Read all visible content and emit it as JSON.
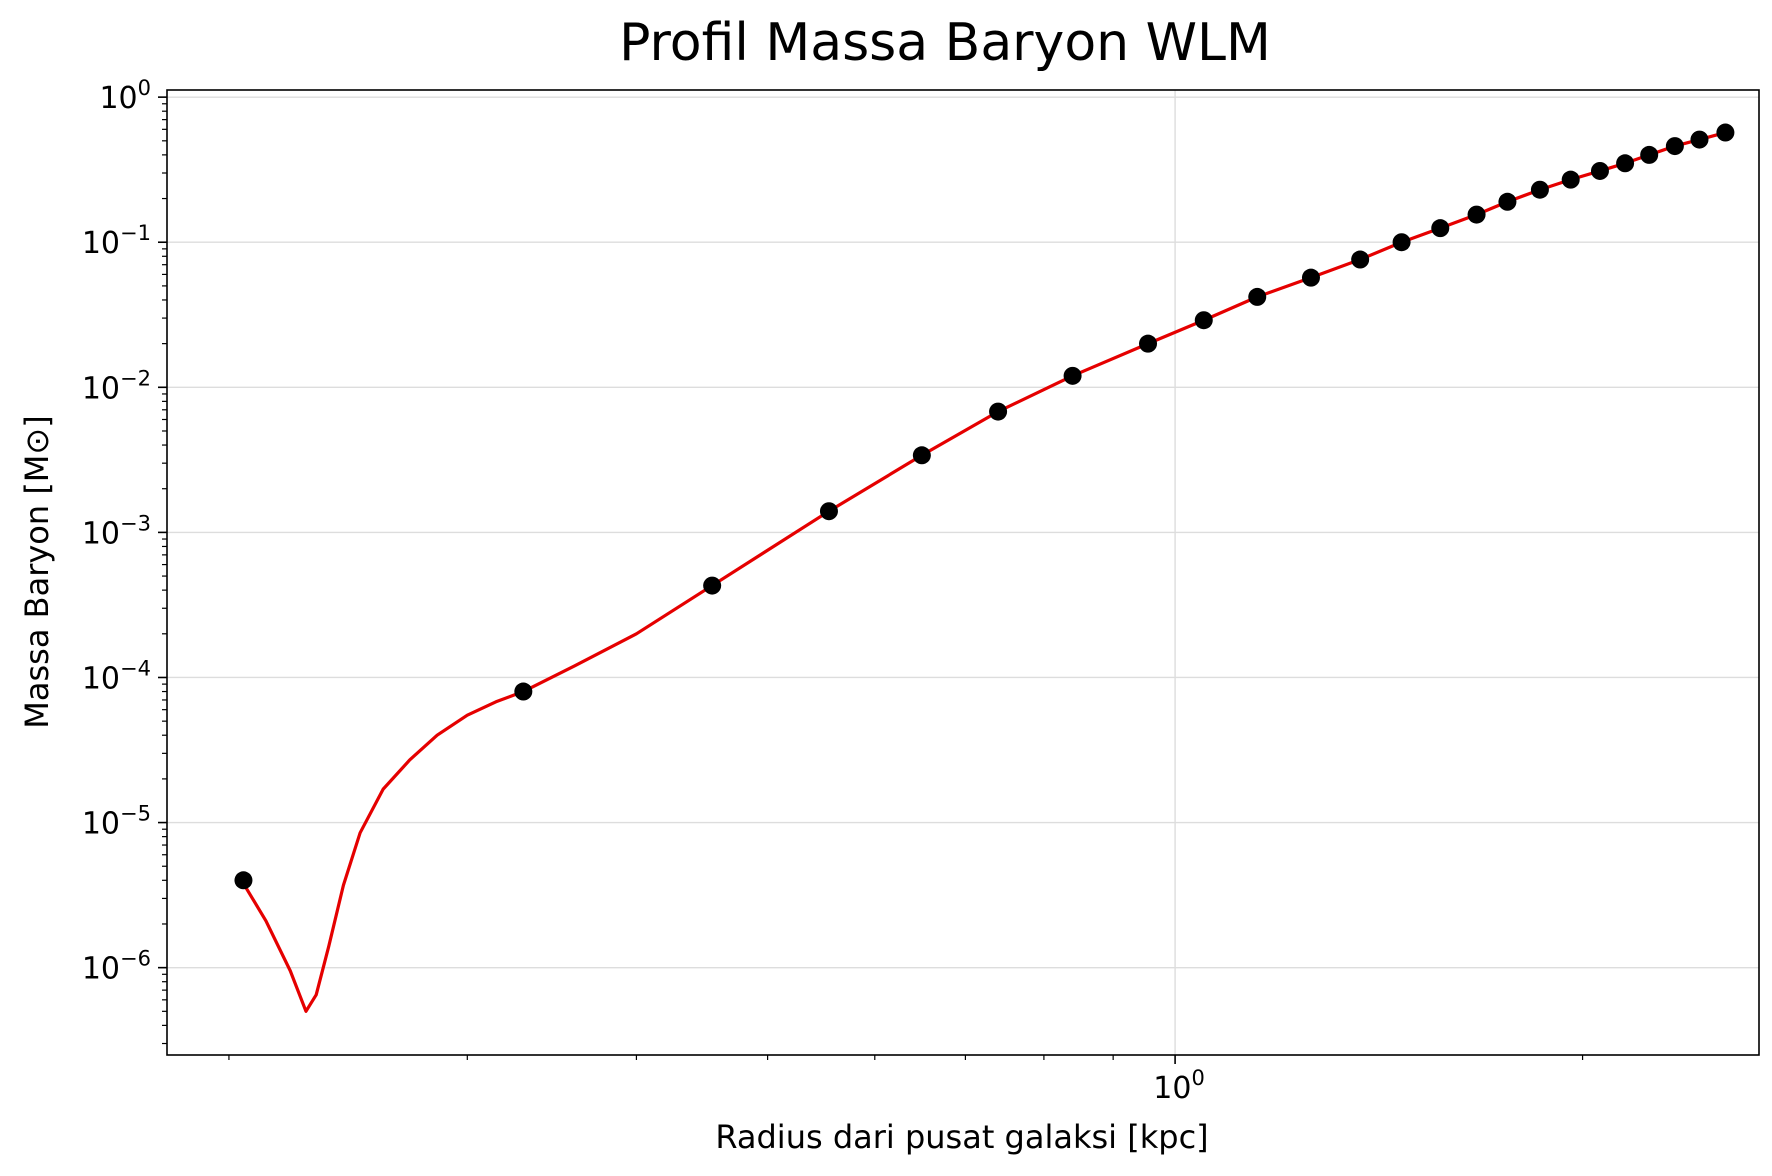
{
  "chart_data": {
    "type": "scatter",
    "title": "Profil Massa Baryon WLM",
    "xlabel": "Radius dari pusat galaksi [kpc]",
    "ylabel": "Massa Baryon [M⊙]",
    "xscale": "log",
    "yscale": "log",
    "xlim": [
      0.18,
      2.7
    ],
    "ylim": [
      2.5e-07,
      1.12
    ],
    "grid": true,
    "x_ticks": [
      {
        "base": "10",
        "exp": "0",
        "value": 1
      }
    ],
    "y_ticks": [
      {
        "base": "10",
        "exp": "0",
        "value": 1
      },
      {
        "base": "10",
        "exp": "−1",
        "value": 0.1
      },
      {
        "base": "10",
        "exp": "−2",
        "value": 0.01
      },
      {
        "base": "10",
        "exp": "−3",
        "value": 0.001
      },
      {
        "base": "10",
        "exp": "−4",
        "value": 0.0001
      },
      {
        "base": "10",
        "exp": "−5",
        "value": 1e-05
      },
      {
        "base": "10",
        "exp": "−6",
        "value": 1e-06
      }
    ],
    "series": [
      {
        "kind": "points",
        "color": "#000000",
        "x": [
          0.205,
          0.33,
          0.455,
          0.555,
          0.65,
          0.74,
          0.84,
          0.955,
          1.05,
          1.15,
          1.26,
          1.37,
          1.47,
          1.57,
          1.67,
          1.76,
          1.86,
          1.96,
          2.06,
          2.15,
          2.24,
          2.34,
          2.44,
          2.55
        ],
        "y": [
          4e-06,
          8e-05,
          0.00043,
          0.0014,
          0.0034,
          0.0068,
          0.012,
          0.02,
          0.029,
          0.042,
          0.057,
          0.076,
          0.1,
          0.125,
          0.155,
          0.19,
          0.23,
          0.27,
          0.31,
          0.35,
          0.4,
          0.46,
          0.51,
          0.57
        ]
      },
      {
        "kind": "line",
        "color": "#e50000",
        "x": [
          0.205,
          0.213,
          0.222,
          0.228,
          0.232,
          0.237,
          0.243,
          0.25,
          0.26,
          0.272,
          0.285,
          0.3,
          0.315,
          0.33,
          0.36,
          0.4,
          0.455,
          0.555,
          0.65,
          0.74,
          0.84,
          0.955,
          1.05,
          1.15,
          1.26,
          1.37,
          1.47,
          1.57,
          1.67,
          1.76,
          1.86,
          1.96,
          2.06,
          2.15,
          2.24,
          2.34,
          2.44,
          2.55
        ],
        "y": [
          3.8e-06,
          2.1e-06,
          9.5e-07,
          5e-07,
          6.5e-07,
          1.4e-06,
          3.7e-06,
          8.5e-06,
          1.7e-05,
          2.7e-05,
          4e-05,
          5.5e-05,
          6.8e-05,
          8e-05,
          0.00012,
          0.0002,
          0.00043,
          0.0014,
          0.0034,
          0.0068,
          0.012,
          0.02,
          0.029,
          0.042,
          0.057,
          0.076,
          0.1,
          0.125,
          0.155,
          0.19,
          0.23,
          0.27,
          0.31,
          0.35,
          0.4,
          0.46,
          0.51,
          0.57
        ]
      }
    ]
  }
}
